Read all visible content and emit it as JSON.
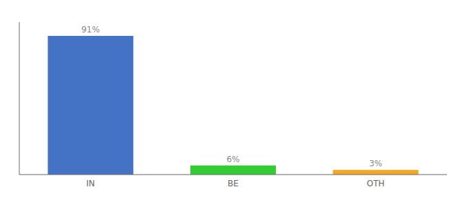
{
  "chart_data": {
    "type": "bar",
    "categories": [
      "IN",
      "BE",
      "OTH"
    ],
    "values": [
      91,
      6,
      3
    ],
    "value_labels": [
      "91%",
      "6%",
      "3%"
    ],
    "colors": [
      "#4472c4",
      "#33cc33",
      "#f5a623"
    ],
    "ylim": [
      0,
      100
    ],
    "data_labels": true,
    "tick_labels": "x"
  }
}
